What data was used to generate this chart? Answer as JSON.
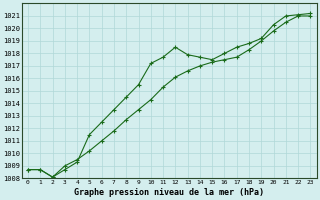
{
  "title": "Graphe pression niveau de la mer (hPa)",
  "background_color": "#d4eeee",
  "grid_color": "#b0d8d8",
  "line_color": "#1a6b1a",
  "marker": "+",
  "markersize": 3.5,
  "linewidth": 0.8,
  "x_labels": [
    "0",
    "1",
    "2",
    "3",
    "4",
    "5",
    "6",
    "7",
    "8",
    "9",
    "10",
    "11",
    "12",
    "13",
    "14",
    "15",
    "16",
    "17",
    "18",
    "19",
    "20",
    "21",
    "22",
    "23"
  ],
  "ylim": [
    1008,
    1022
  ],
  "xlim": [
    -0.5,
    23.5
  ],
  "yticks": [
    1008,
    1009,
    1010,
    1011,
    1012,
    1013,
    1014,
    1015,
    1016,
    1017,
    1018,
    1019,
    1020,
    1021
  ],
  "ytick_fontsize": 5.0,
  "xtick_fontsize": 4.5,
  "xlabel_fontsize": 6.0,
  "series1_x": [
    0,
    1,
    2,
    3,
    4,
    5,
    6,
    7,
    8,
    9,
    10,
    11,
    12,
    13,
    14,
    15,
    16,
    17,
    18,
    19,
    20,
    21,
    22,
    23
  ],
  "series1_y": [
    1008.7,
    1008.7,
    1008.1,
    1009.0,
    1009.5,
    1010.2,
    1011.0,
    1011.8,
    1012.7,
    1013.5,
    1014.3,
    1015.3,
    1016.1,
    1016.6,
    1017.0,
    1017.3,
    1017.5,
    1017.7,
    1018.3,
    1019.0,
    1019.8,
    1020.5,
    1021.0,
    1021.0
  ],
  "series2_x": [
    0,
    1,
    2,
    3,
    4,
    5,
    6,
    7,
    8,
    9,
    10,
    11,
    12,
    13,
    14,
    15,
    16,
    17,
    18,
    19,
    20,
    21,
    22,
    23
  ],
  "series2_y": [
    1008.7,
    1008.7,
    1008.1,
    1008.7,
    1009.3,
    1011.5,
    1012.5,
    1013.5,
    1014.5,
    1015.5,
    1017.2,
    1017.7,
    1018.5,
    1017.9,
    1017.7,
    1017.5,
    1018.0,
    1018.5,
    1018.8,
    1019.2,
    1020.3,
    1021.0,
    1021.1,
    1021.2
  ]
}
